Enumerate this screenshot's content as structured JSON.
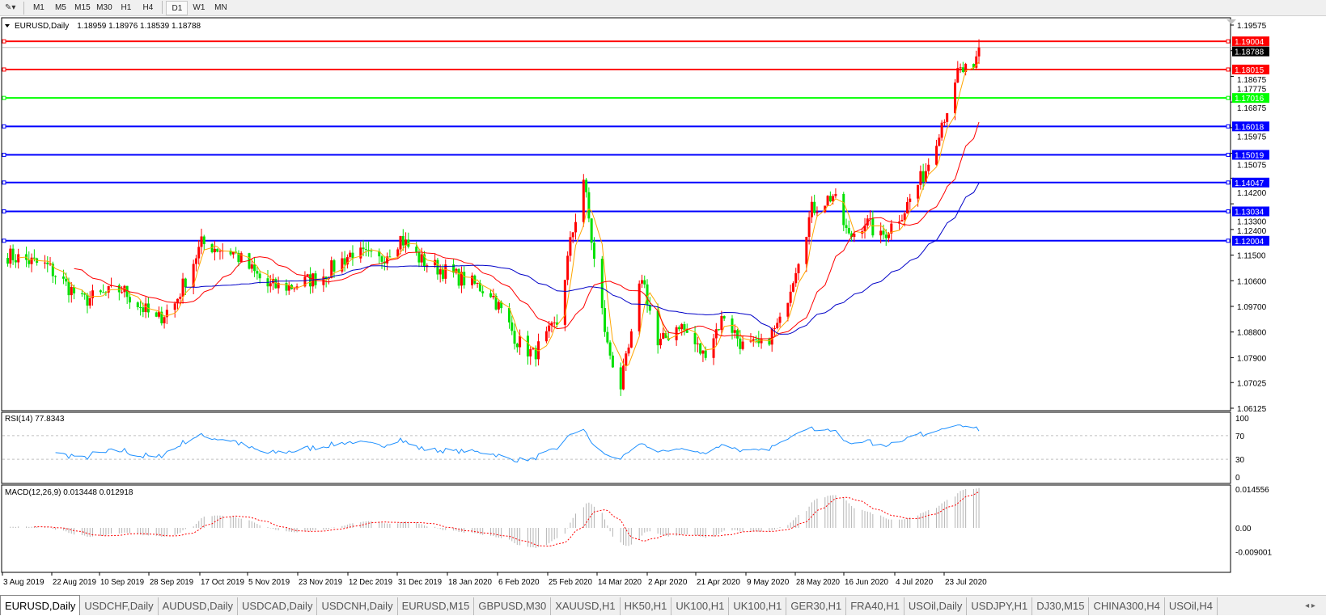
{
  "toolbar": {
    "draw_tool_icon": "pencil-tools-icon",
    "timeframes": [
      "M1",
      "M5",
      "M15",
      "M30",
      "H1",
      "H4",
      "D1",
      "W1",
      "MN"
    ],
    "active_timeframe": "D1"
  },
  "chart": {
    "symbol_info": "EURUSD,Daily",
    "ohlc": "1.18959 1.18976 1.18539 1.18788",
    "current_price": "1.18788",
    "colors": {
      "bull": "#ff0000",
      "bear": "#00e000",
      "ma_fast": "#ffa500",
      "ma_mid": "#ff0000",
      "ma_slow": "#0000c8",
      "rsi": "#1e90ff",
      "macd_signal": "#ff0000",
      "macd_hist": "#b4b4b4"
    },
    "price_ticks": [
      "1.19575",
      "1.18675",
      "1.17775",
      "1.16875",
      "1.15975",
      "1.15075",
      "1.14200",
      "1.13300",
      "1.12400",
      "1.11500",
      "1.10600",
      "1.09700",
      "1.08800",
      "1.07900",
      "1.07025",
      "1.06125"
    ],
    "levels": [
      {
        "price": "1.19004",
        "color": "#ff0000"
      },
      {
        "price": "1.18015",
        "color": "#ff0000"
      },
      {
        "price": "1.17016",
        "color": "#00ff00"
      },
      {
        "price": "1.16018",
        "color": "#0000ff"
      },
      {
        "price": "1.15019",
        "color": "#0000ff"
      },
      {
        "price": "1.14047",
        "color": "#0000ff"
      },
      {
        "price": "1.13034",
        "color": "#0000ff"
      },
      {
        "price": "1.12004",
        "color": "#0000ff"
      }
    ],
    "date_labels": [
      "3 Aug 2019",
      "22 Aug 2019",
      "10 Sep 2019",
      "28 Sep 2019",
      "17 Oct 2019",
      "5 Nov 2019",
      "23 Nov 2019",
      "12 Dec 2019",
      "31 Dec 2019",
      "18 Jan 2020",
      "6 Feb 2020",
      "25 Feb 2020",
      "14 Mar 2020",
      "2 Apr 2020",
      "21 Apr 2020",
      "9 May 2020",
      "28 May 2020",
      "16 Jun 2020",
      "4 Jul 2020",
      "23 Jul 2020"
    ],
    "approx_closes": [
      [
        "2019-08-05",
        1.115
      ],
      [
        "2019-08-20",
        1.111
      ],
      [
        "2019-09-02",
        1.099
      ],
      [
        "2019-09-17",
        1.103
      ],
      [
        "2019-09-30",
        1.092
      ],
      [
        "2019-10-07",
        1.098
      ],
      [
        "2019-10-17",
        1.119
      ],
      [
        "2019-10-29",
        1.116
      ],
      [
        "2019-11-11",
        1.104
      ],
      [
        "2019-11-20",
        1.104
      ],
      [
        "2019-12-02",
        1.108
      ],
      [
        "2019-12-13",
        1.116
      ],
      [
        "2019-12-23",
        1.113
      ],
      [
        "2019-12-31",
        1.121
      ],
      [
        "2020-01-08",
        1.113
      ],
      [
        "2020-01-20",
        1.108
      ],
      [
        "2020-02-03",
        1.102
      ],
      [
        "2020-02-13",
        1.085
      ],
      [
        "2020-02-19",
        1.08
      ],
      [
        "2020-02-28",
        1.091
      ],
      [
        "2020-03-04",
        1.119
      ],
      [
        "2020-03-09",
        1.142
      ],
      [
        "2020-03-13",
        1.113
      ],
      [
        "2020-03-18",
        1.083
      ],
      [
        "2020-03-23",
        1.069
      ],
      [
        "2020-03-27",
        1.086
      ],
      [
        "2020-03-31",
        1.108
      ],
      [
        "2020-04-06",
        1.083
      ],
      [
        "2020-04-14",
        1.091
      ],
      [
        "2020-04-23",
        1.08
      ],
      [
        "2020-05-01",
        1.094
      ],
      [
        "2020-05-08",
        1.083
      ],
      [
        "2020-05-15",
        1.083
      ],
      [
        "2020-05-22",
        1.091
      ],
      [
        "2020-05-28",
        1.111
      ],
      [
        "2020-06-03",
        1.131
      ],
      [
        "2020-06-11",
        1.136
      ],
      [
        "2020-06-17",
        1.121
      ],
      [
        "2020-06-23",
        1.127
      ],
      [
        "2020-06-29",
        1.121
      ],
      [
        "2020-07-08",
        1.131
      ],
      [
        "2020-07-16",
        1.145
      ],
      [
        "2020-07-22",
        1.162
      ],
      [
        "2020-07-27",
        1.173
      ],
      [
        "2020-07-28",
        1.179
      ],
      [
        "2020-07-31",
        1.18
      ],
      [
        "2020-08-03",
        1.178
      ],
      [
        "2020-08-05",
        1.18788
      ]
    ]
  },
  "rsi": {
    "label": "RSI(14) 77.8343",
    "ticks": [
      "100",
      "70",
      "30",
      "0"
    ]
  },
  "macd": {
    "label": "MACD(12,26,9) 0.013448 0.012918",
    "ticks": [
      "0.014556",
      "0.00",
      "-0.009001"
    ]
  },
  "tabs": [
    "EURUSD,Daily",
    "USDCHF,Daily",
    "AUDUSD,Daily",
    "USDCAD,Daily",
    "USDCNH,Daily",
    "EURUSD,M15",
    "GBPUSD,M30",
    "XAUUSD,H1",
    "HK50,H1",
    "UK100,H1",
    "UK100,H1",
    "GER30,H1",
    "FRA40,H1",
    "USOil,Daily",
    "USDJPY,H1",
    "DJ30,M15",
    "CHINA300,H4",
    "USOil,H4"
  ],
  "active_tab": "EURUSD,Daily"
}
